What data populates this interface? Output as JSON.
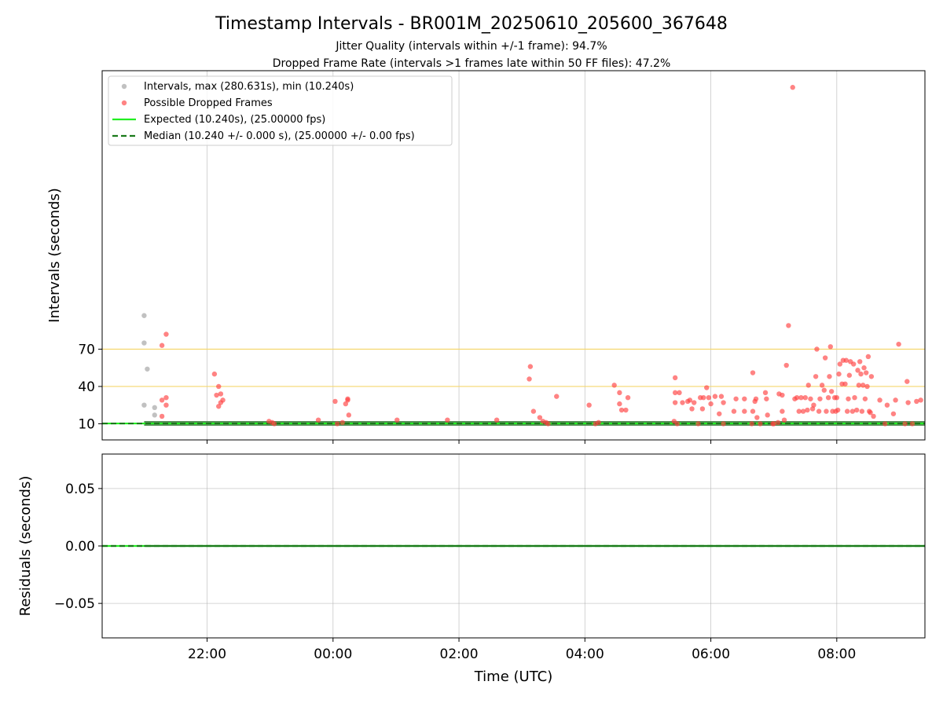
{
  "figure": {
    "title": "Timestamp Intervals - BR001M_20250610_205600_367648",
    "subtitle_line1": "Jitter Quality (intervals within +/-1 frame): 94.7%",
    "subtitle_line2": "Dropped Frame Rate (intervals >1 frames late within 50 FF files): 47.2%"
  },
  "chart_data": [
    {
      "type": "scatter",
      "ylabel": "Intervals (seconds)",
      "xlabel": "",
      "xlim": [
        "20:20",
        "09:24"
      ],
      "ylim": [
        -3,
        294
      ],
      "yticks": [
        10,
        40,
        70
      ],
      "yticklabels": [
        "10",
        "40",
        "70"
      ],
      "xticks": [
        "22:00",
        "00:00",
        "02:00",
        "04:00",
        "06:00",
        "08:00"
      ],
      "reference_lines": [
        {
          "y": 40,
          "color": "#f5d76e"
        },
        {
          "y": 70,
          "color": "#f5d76e"
        }
      ],
      "grid": "x",
      "legend_position": "top-left",
      "legend": [
        {
          "label": "Intervals, max (280.631s), min (10.240s)",
          "marker": "dot",
          "color": "#a0a0a0"
        },
        {
          "label": "Possible Dropped Frames",
          "marker": "dot",
          "color": "#ff4040"
        },
        {
          "label": "Expected (10.240s), (25.00000 fps)",
          "marker": "line",
          "color": "#22ee22"
        },
        {
          "label": "Median (10.240 +/- 0.000 s), (25.00000 +/- 0.00 fps)",
          "marker": "dashed",
          "color": "#1a7a1a"
        }
      ],
      "series": [
        {
          "kind": "line_band",
          "color": "#3a7a3a",
          "x": [
            "21:00",
            "07:14",
            "07:17",
            "09:24"
          ],
          "values": [
            10.24,
            10.24,
            10.24,
            10.24
          ]
        },
        {
          "kind": "line",
          "color": "#22ee22",
          "x": [
            "20:20",
            "09:24"
          ],
          "values": [
            10.24,
            10.24
          ]
        },
        {
          "kind": "dashed",
          "color": "#1a7a1a",
          "x": [
            "20:20",
            "09:24"
          ],
          "values": [
            10.24,
            10.24
          ]
        },
        {
          "kind": "points",
          "color": "#a0a0a0",
          "points": [
            [
              "21:00",
              97
            ],
            [
              "21:00",
              75
            ],
            [
              "21:03",
              54
            ],
            [
              "21:00",
              25
            ],
            [
              "21:10",
              23
            ],
            [
              "21:10",
              17
            ]
          ]
        },
        {
          "kind": "points",
          "color": "#ff4040",
          "points": [
            [
              "21:21",
              82
            ],
            [
              "21:17",
              73
            ],
            [
              "21:17",
              29
            ],
            [
              "21:21",
              31
            ],
            [
              "21:21",
              25
            ],
            [
              "21:17",
              16
            ],
            [
              "22:07",
              50
            ],
            [
              "22:11",
              40
            ],
            [
              "22:09",
              33
            ],
            [
              "22:13",
              34
            ],
            [
              "22:15",
              29
            ],
            [
              "22:13",
              27
            ],
            [
              "22:11",
              24
            ],
            [
              "22:59",
              12
            ],
            [
              "23:02",
              11
            ],
            [
              "23:04",
              10
            ],
            [
              "23:46",
              13
            ],
            [
              "00:02",
              28
            ],
            [
              "00:04",
              10
            ],
            [
              "00:09",
              11
            ],
            [
              "00:12",
              26
            ],
            [
              "00:14",
              29
            ],
            [
              "00:14",
              30
            ],
            [
              "00:15",
              17
            ],
            [
              "01:01",
              13
            ],
            [
              "01:49",
              13
            ],
            [
              "02:36",
              13
            ],
            [
              "03:08",
              56
            ],
            [
              "03:07",
              46
            ],
            [
              "03:11",
              20
            ],
            [
              "03:17",
              15
            ],
            [
              "03:20",
              12
            ],
            [
              "03:23",
              11
            ],
            [
              "03:25",
              10
            ],
            [
              "03:33",
              32
            ],
            [
              "04:04",
              25
            ],
            [
              "04:10",
              10
            ],
            [
              "04:13",
              11
            ],
            [
              "04:28",
              41
            ],
            [
              "04:33",
              35
            ],
            [
              "04:33",
              26
            ],
            [
              "04:35",
              21
            ],
            [
              "04:39",
              21
            ],
            [
              "04:41",
              31
            ],
            [
              "05:26",
              47
            ],
            [
              "05:26",
              35
            ],
            [
              "05:30",
              35
            ],
            [
              "05:25",
              12
            ],
            [
              "05:28",
              10
            ],
            [
              "05:26",
              27
            ],
            [
              "05:33",
              27
            ],
            [
              "05:38",
              28
            ],
            [
              "05:40",
              29
            ],
            [
              "05:42",
              22
            ],
            [
              "05:44",
              27
            ],
            [
              "05:48",
              10
            ],
            [
              "05:50",
              31
            ],
            [
              "05:53",
              31
            ],
            [
              "05:52",
              22
            ],
            [
              "05:56",
              39
            ],
            [
              "05:58",
              31
            ],
            [
              "06:00",
              26
            ],
            [
              "06:04",
              32
            ],
            [
              "06:08",
              18
            ],
            [
              "06:10",
              32
            ],
            [
              "06:12",
              27
            ],
            [
              "06:12",
              10
            ],
            [
              "06:22",
              20
            ],
            [
              "06:24",
              30
            ],
            [
              "06:32",
              20
            ],
            [
              "06:32",
              30
            ],
            [
              "06:39",
              10
            ],
            [
              "06:40",
              51
            ],
            [
              "06:40",
              20
            ],
            [
              "06:42",
              28
            ],
            [
              "06:43",
              30
            ],
            [
              "06:44",
              15
            ],
            [
              "06:47",
              10
            ],
            [
              "06:52",
              35
            ],
            [
              "06:53",
              30
            ],
            [
              "06:54",
              17
            ],
            [
              "06:59",
              10
            ],
            [
              "07:00",
              10
            ],
            [
              "07:04",
              11
            ],
            [
              "07:05",
              34
            ],
            [
              "07:08",
              33
            ],
            [
              "07:08",
              20
            ],
            [
              "07:10",
              13
            ],
            [
              "07:12",
              57
            ],
            [
              "07:14",
              89
            ],
            [
              "07:18",
              280.6
            ],
            [
              "07:20",
              30
            ],
            [
              "07:22",
              31
            ],
            [
              "07:24",
              20
            ],
            [
              "07:26",
              31
            ],
            [
              "07:28",
              20
            ],
            [
              "07:30",
              31
            ],
            [
              "07:32",
              21
            ],
            [
              "07:33",
              41
            ],
            [
              "07:35",
              30
            ],
            [
              "07:37",
              22
            ],
            [
              "07:38",
              25
            ],
            [
              "07:40",
              48
            ],
            [
              "07:41",
              70
            ],
            [
              "07:43",
              20
            ],
            [
              "07:44",
              30
            ],
            [
              "07:46",
              41
            ],
            [
              "07:48",
              37
            ],
            [
              "07:49",
              63
            ],
            [
              "07:50",
              20
            ],
            [
              "07:52",
              31
            ],
            [
              "07:53",
              48
            ],
            [
              "07:54",
              72
            ],
            [
              "07:55",
              36
            ],
            [
              "07:56",
              20
            ],
            [
              "07:58",
              31
            ],
            [
              "07:59",
              20
            ],
            [
              "08:00",
              31
            ],
            [
              "08:01",
              21
            ],
            [
              "08:02",
              50
            ],
            [
              "08:03",
              58
            ],
            [
              "08:05",
              42
            ],
            [
              "08:06",
              61
            ],
            [
              "08:08",
              42
            ],
            [
              "08:09",
              61
            ],
            [
              "08:10",
              20
            ],
            [
              "08:11",
              30
            ],
            [
              "08:12",
              49
            ],
            [
              "08:13",
              60
            ],
            [
              "08:15",
              20
            ],
            [
              "08:16",
              58
            ],
            [
              "08:17",
              31
            ],
            [
              "08:19",
              21
            ],
            [
              "08:20",
              53
            ],
            [
              "08:21",
              41
            ],
            [
              "08:22",
              60
            ],
            [
              "08:23",
              50
            ],
            [
              "08:24",
              20
            ],
            [
              "08:25",
              41
            ],
            [
              "08:26",
              55
            ],
            [
              "08:27",
              30
            ],
            [
              "08:28",
              51
            ],
            [
              "08:29",
              40
            ],
            [
              "08:30",
              64
            ],
            [
              "08:31",
              20
            ],
            [
              "08:32",
              19
            ],
            [
              "08:33",
              48
            ],
            [
              "08:35",
              16
            ],
            [
              "08:41",
              29
            ],
            [
              "08:46",
              10
            ],
            [
              "08:48",
              25
            ],
            [
              "08:54",
              18
            ],
            [
              "08:56",
              29
            ],
            [
              "08:59",
              74
            ],
            [
              "09:05",
              10
            ],
            [
              "09:07",
              44
            ],
            [
              "09:08",
              27
            ],
            [
              "09:12",
              10
            ],
            [
              "09:16",
              28
            ],
            [
              "09:20",
              29
            ]
          ]
        }
      ]
    },
    {
      "type": "line",
      "xlabel": "Time (UTC)",
      "ylabel": "Residuals (seconds)",
      "xlim": [
        "20:20",
        "09:24"
      ],
      "ylim": [
        -0.08,
        0.08
      ],
      "yticks": [
        0.05,
        0.0,
        -0.05
      ],
      "yticklabels": [
        "0.05",
        "0.00",
        "−0.05"
      ],
      "xticks": [
        "22:00",
        "00:00",
        "02:00",
        "04:00",
        "06:00",
        "08:00"
      ],
      "xticklabels": [
        "22:00",
        "00:00",
        "02:00",
        "04:00",
        "06:00",
        "08:00"
      ],
      "grid": "both",
      "series": [
        {
          "kind": "line",
          "color": "#22ee22",
          "x": [
            "20:20",
            "09:24"
          ],
          "values": [
            0,
            0
          ]
        },
        {
          "kind": "dashed",
          "color": "#1a7a1a",
          "x": [
            "20:20",
            "09:24"
          ],
          "values": [
            0,
            0
          ]
        },
        {
          "kind": "line",
          "color": "#1a7a1a",
          "x": [
            "21:00",
            "09:24"
          ],
          "values": [
            0,
            0
          ]
        }
      ]
    }
  ]
}
